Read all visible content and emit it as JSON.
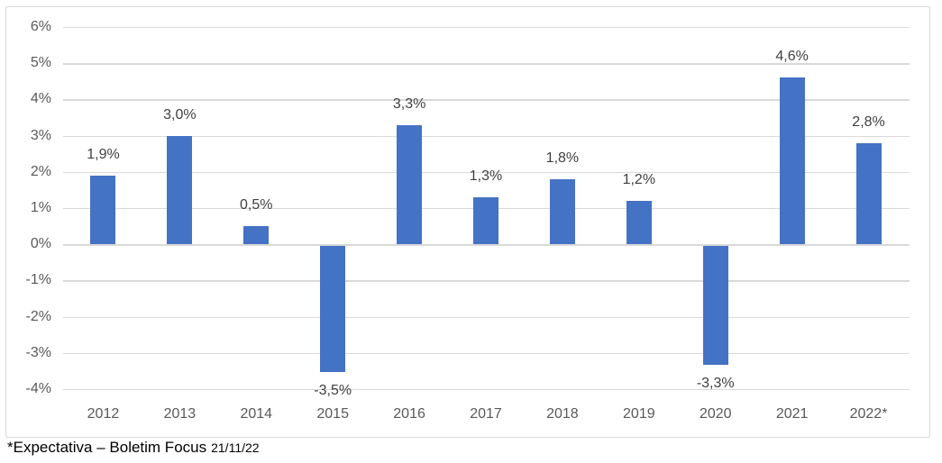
{
  "chart_data": {
    "type": "bar",
    "title": "",
    "xlabel": "",
    "ylabel": "",
    "categories": [
      "2012",
      "2013",
      "2014",
      "2015",
      "2016",
      "2017",
      "2018",
      "2019",
      "2020",
      "2021",
      "2022*"
    ],
    "values": [
      1.9,
      3.0,
      0.5,
      -3.5,
      3.3,
      1.3,
      1.8,
      1.2,
      -3.3,
      4.6,
      2.8
    ],
    "value_labels": [
      "1,9%",
      "3,0%",
      "0,5%",
      "-3,5%",
      "3,3%",
      "1,3%",
      "1,8%",
      "1,2%",
      "-3,3%",
      "4,6%",
      "2,8%"
    ],
    "y_ticks": [
      "6%",
      "5%",
      "4%",
      "3%",
      "2%",
      "1%",
      "0%",
      "-1%",
      "-2%",
      "-3%",
      "-4%"
    ],
    "ylim": [
      -4,
      6
    ],
    "grid": true,
    "legend": "none",
    "bar_color": "#4472C4",
    "gridline_color": "#D9D9D9",
    "axis_text_color": "#595959",
    "value_text_color": "#3F3F3F"
  },
  "footer": {
    "note": "*Expectativa – Boletim Focus",
    "date": "21/11/22"
  }
}
